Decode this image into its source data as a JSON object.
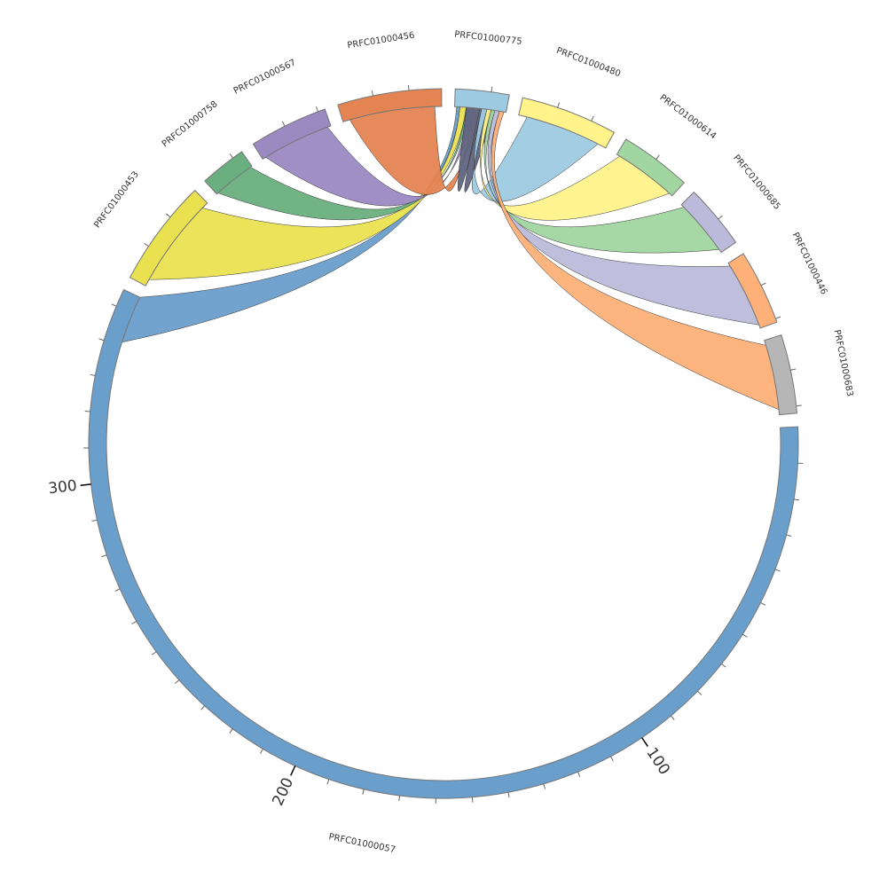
{
  "chart_data": {
    "type": "chord",
    "tick_step": 10,
    "groups": [
      {
        "name": "PRFC01000057",
        "size": 355,
        "color": "#6a9ecb",
        "tick_labels": [
          100,
          200,
          300
        ]
      },
      {
        "name": "PRFC01000453",
        "size": 30,
        "color": "#eae150"
      },
      {
        "name": "PRFC01000758",
        "size": 13,
        "color": "#6aaf80"
      },
      {
        "name": "PRFC01000567",
        "size": 22,
        "color": "#9b89c2"
      },
      {
        "name": "PRFC01000456",
        "size": 29,
        "color": "#e58453"
      },
      {
        "name": "PRFC01000775",
        "size": 15,
        "color": "#9ecae1"
      },
      {
        "name": "PRFC01000480",
        "size": 27,
        "color": "#fff38a"
      },
      {
        "name": "PRFC01000614",
        "size": 20,
        "color": "#a1d6a0"
      },
      {
        "name": "PRFC01000685",
        "size": 18,
        "color": "#bcbadb"
      },
      {
        "name": "PRFC01000446",
        "size": 21,
        "color": "#fdb077"
      },
      {
        "name": "PRFC01000683",
        "size": 22,
        "color": "#b6b6b6"
      }
    ],
    "links": [
      {
        "source": "PRFC01000057",
        "target": "PRFC01000775",
        "value": 14,
        "color": "#6a9ecb"
      },
      {
        "source": "PRFC01000453",
        "target": "PRFC01000775",
        "value": 26,
        "color": "#eae150"
      },
      {
        "source": "PRFC01000758",
        "target": "PRFC01000775",
        "value": 12,
        "color": "#6aaf80"
      },
      {
        "source": "PRFC01000567",
        "target": "PRFC01000775",
        "value": 20,
        "color": "#9b89c2"
      },
      {
        "source": "PRFC01000456",
        "target": "PRFC01000775",
        "value": 25,
        "color": "#e58453"
      },
      {
        "source": "PRFC01000775",
        "target": "PRFC01000775",
        "value": 8,
        "color": "#5f6580"
      },
      {
        "source": "PRFC01000480",
        "target": "PRFC01000775",
        "value": 22,
        "color": "#9ecae1"
      },
      {
        "source": "PRFC01000614",
        "target": "PRFC01000775",
        "value": 18,
        "color": "#fff38a"
      },
      {
        "source": "PRFC01000685",
        "target": "PRFC01000775",
        "value": 16,
        "color": "#a1d6a0"
      },
      {
        "source": "PRFC01000446",
        "target": "PRFC01000775",
        "value": 19,
        "color": "#bcbadb"
      },
      {
        "source": "PRFC01000683",
        "target": "PRFC01000775",
        "value": 19,
        "color": "#fdb077"
      }
    ]
  }
}
